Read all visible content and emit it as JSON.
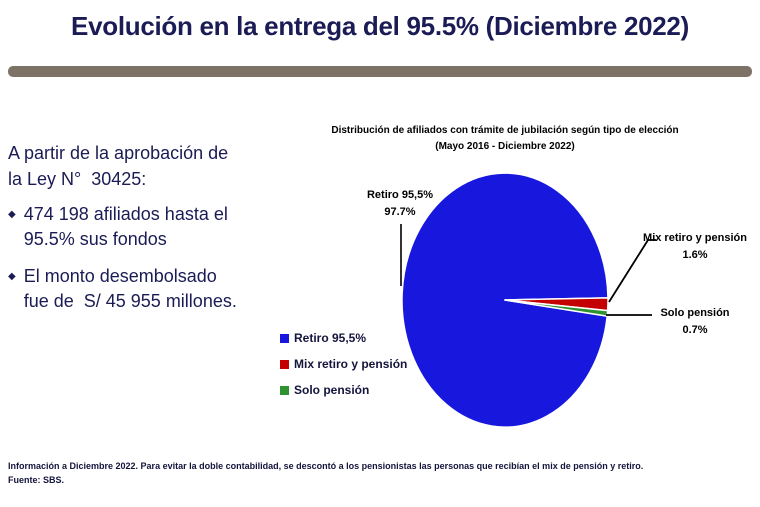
{
  "colors": {
    "c-title": "#1b1b55",
    "c-divider": "#7d7266",
    "c-chart-text": "#000000",
    "c-footer": "#14143c"
  },
  "header": {
    "title": "Evolución en la entrega del 95.5% (Diciembre 2022)"
  },
  "left_panel": {
    "intro": "A partir de la aprobación de\nla Ley N°  30425:",
    "bullet_glyph": "◆",
    "bullets": [
      "474 198 afiliados hasta el\n95.5% sus fondos",
      "El monto desembolsado\nfue de  S/ 45 955 millones."
    ]
  },
  "chart_data": {
    "type": "pie",
    "title": "Distribución de afiliados con trámite de jubilación según tipo de elección",
    "subtitle": "(Mayo 2016 - Diciembre 2022)",
    "legend_position": "left",
    "slices": [
      {
        "label": "Retiro 95,5%",
        "value": 97.7,
        "display": "97.7%",
        "color": "#1717dd"
      },
      {
        "label": "Mix retiro y pensión",
        "value": 1.6,
        "display": "1.6%",
        "color": "#c40000"
      },
      {
        "label": "Solo pensión",
        "value": 0.7,
        "display": "0.7%",
        "color": "#2e9230"
      }
    ]
  },
  "footer": {
    "line1": "Información a Diciembre 2022. Para evitar la doble contabilidad, se descontó a los pensionistas las personas que recibían el mix de pensión y retiro.",
    "line2": "Fuente:  SBS."
  }
}
